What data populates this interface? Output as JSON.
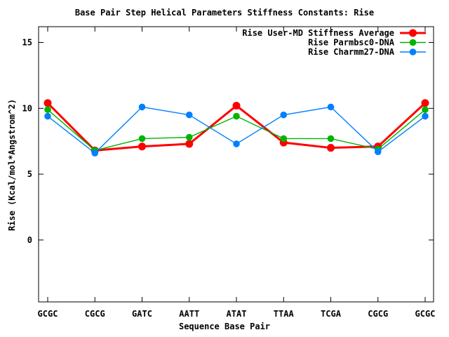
{
  "chart_data": {
    "type": "line",
    "title": "Base Pair Step Helical Parameters Stiffness Constants: Rise",
    "xlabel": "Sequence Base Pair",
    "ylabel": "Rise (Kcal/mol*Angstrom^2)",
    "categories": [
      "GCGC",
      "CGCG",
      "GATC",
      "AATT",
      "ATAT",
      "TTAA",
      "TCGA",
      "CGCG",
      "GCGC"
    ],
    "series": [
      {
        "name": "Rise User-MD Stiffness Average",
        "color": "#ff0000",
        "marker": "filled-circle",
        "line_width": 3,
        "marker_radius": 5.5,
        "values": [
          10.4,
          6.8,
          7.1,
          7.3,
          10.2,
          7.4,
          7.0,
          7.1,
          10.4
        ]
      },
      {
        "name": "Rise Parmbsc0-DNA",
        "color": "#00b400",
        "marker": "filled-circle",
        "line_width": 1.4,
        "marker_radius": 4.8,
        "values": [
          9.9,
          6.8,
          7.7,
          7.8,
          9.4,
          7.7,
          7.7,
          6.9,
          9.9
        ]
      },
      {
        "name": "Rise Charmm27-DNA",
        "color": "#0080ff",
        "marker": "filled-circle",
        "line_width": 1.4,
        "marker_radius": 4.8,
        "values": [
          9.4,
          6.6,
          10.1,
          9.5,
          7.3,
          9.5,
          10.1,
          6.7,
          9.4
        ]
      }
    ],
    "yticks": [
      0,
      5,
      10,
      15
    ],
    "ylim": [
      -4.7,
      16.2
    ],
    "legend_position": "top-right-inside",
    "grid": false,
    "border": true,
    "background_color": "#ffffff",
    "text_color": "#000000"
  }
}
